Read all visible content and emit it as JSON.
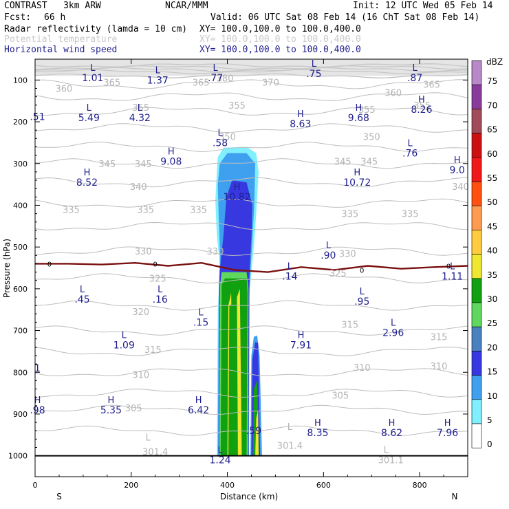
{
  "header": {
    "model": "CONTRAST   3km ARW",
    "org": "NCAR/MMM",
    "init": "Init: 12 UTC Wed 05 Feb 14",
    "fcst_label": "Fcst:",
    "fcst_value": "66 h",
    "valid": "Valid: 06 UTC Sat 08 Feb 14 (16 ChT Sat 08 Feb 14)",
    "fields": [
      {
        "name": "Radar reflectivity (lamda = 10 cm)",
        "xy": "XY= 100.0,100.0 to 100.0,400.0",
        "color": "#000000"
      },
      {
        "name": "Potential temperature",
        "xy": "XY= 100.0,100.0 to 100.0,400.0",
        "color": "#c8c8c8"
      },
      {
        "name": "Horizontal wind speed",
        "xy": "XY= 100.0,100.0 to 100.0,400.0",
        "color": "#1f1f8f"
      }
    ]
  },
  "chart_data": {
    "type": "contour-cross-section",
    "xlabel": "Distance (km)",
    "ylabel": "Pressure (hPa)",
    "xlim": [
      0,
      900
    ],
    "ylim": [
      1050,
      50
    ],
    "x_ticks": [
      "0",
      "200",
      "400",
      "600",
      "800"
    ],
    "x_tick_values": [
      0,
      200,
      400,
      600,
      800
    ],
    "y_ticks": [
      "100",
      "200",
      "300",
      "400",
      "500",
      "600",
      "700",
      "800",
      "900",
      "1000"
    ],
    "y_tick_values": [
      100,
      200,
      300,
      400,
      500,
      600,
      700,
      800,
      900,
      1000
    ],
    "x_end_labels": {
      "left": "S",
      "right": "N"
    },
    "colorbar": {
      "unit": "dBZ",
      "levels": [
        "75",
        "70",
        "65",
        "60",
        "55",
        "50",
        "45",
        "40",
        "35",
        "30",
        "25",
        "20",
        "15",
        "10",
        "5",
        "0"
      ],
      "colors": [
        "#b888c8",
        "#8a3a9a",
        "#a04a5a",
        "#cc1010",
        "#f01818",
        "#ff5010",
        "#ff9a50",
        "#ffcc40",
        "#f0e830",
        "#10a010",
        "#60d860",
        "#4880c0",
        "#3838e0",
        "#40a0f0",
        "#80f0ff",
        "#ffffff"
      ]
    },
    "theta_contour_labels": [
      {
        "text": "380",
        "x": 395,
        "p": 95
      },
      {
        "text": "370",
        "x": 490,
        "p": 105
      },
      {
        "text": "360",
        "x": 60,
        "p": 120
      },
      {
        "text": "365",
        "x": 160,
        "p": 105
      },
      {
        "text": "365",
        "x": 345,
        "p": 105
      },
      {
        "text": "360",
        "x": 745,
        "p": 130
      },
      {
        "text": "365",
        "x": 825,
        "p": 110
      },
      {
        "text": "355",
        "x": 220,
        "p": 165
      },
      {
        "text": "355",
        "x": 420,
        "p": 160
      },
      {
        "text": "355",
        "x": 690,
        "p": 170
      },
      {
        "text": "355",
        "x": 805,
        "p": 160
      },
      {
        "text": "350",
        "x": 400,
        "p": 235
      },
      {
        "text": "350",
        "x": 700,
        "p": 235
      },
      {
        "text": "345",
        "x": 150,
        "p": 300
      },
      {
        "text": "345",
        "x": 225,
        "p": 300
      },
      {
        "text": "345",
        "x": 640,
        "p": 295
      },
      {
        "text": "345",
        "x": 695,
        "p": 295
      },
      {
        "text": "340",
        "x": 215,
        "p": 355
      },
      {
        "text": "340",
        "x": 885,
        "p": 355
      },
      {
        "text": "335",
        "x": 75,
        "p": 410
      },
      {
        "text": "335",
        "x": 230,
        "p": 410
      },
      {
        "text": "335",
        "x": 340,
        "p": 410
      },
      {
        "text": "335",
        "x": 655,
        "p": 420
      },
      {
        "text": "335",
        "x": 780,
        "p": 420
      },
      {
        "text": "330",
        "x": 225,
        "p": 510
      },
      {
        "text": "330",
        "x": 375,
        "p": 510
      },
      {
        "text": "330",
        "x": 650,
        "p": 515
      },
      {
        "text": "325",
        "x": 255,
        "p": 575
      },
      {
        "text": "325",
        "x": 630,
        "p": 562
      },
      {
        "text": "320",
        "x": 220,
        "p": 655
      },
      {
        "text": "315",
        "x": 245,
        "p": 745
      },
      {
        "text": "315",
        "x": 655,
        "p": 685
      },
      {
        "text": "315",
        "x": 840,
        "p": 715
      },
      {
        "text": "310",
        "x": 220,
        "p": 805
      },
      {
        "text": "310",
        "x": 680,
        "p": 788
      },
      {
        "text": "310",
        "x": 840,
        "p": 785
      },
      {
        "text": "305",
        "x": 205,
        "p": 885
      },
      {
        "text": "305",
        "x": 635,
        "p": 855
      },
      {
        "text": "301.4",
        "x": 250,
        "p": 990
      },
      {
        "text": "301.4",
        "x": 530,
        "p": 975
      },
      {
        "text": "301.1",
        "x": 740,
        "p": 1010
      }
    ],
    "theta_extrema_L": [
      {
        "text": "L",
        "x": 235,
        "p": 955
      },
      {
        "text": "L",
        "x": 530,
        "p": 930
      },
      {
        "text": "L",
        "x": 730,
        "p": 985
      }
    ],
    "freezing_level": {
      "label": "0",
      "p_levels": [
        540,
        540,
        542,
        538,
        545,
        538,
        555,
        560,
        548,
        555,
        545,
        552,
        548,
        545
      ]
    },
    "wind_extrema": [
      {
        "type": "L",
        "value": "1.01",
        "x": 120,
        "p": 85
      },
      {
        "type": "L",
        "value": "1.37",
        "x": 255,
        "p": 90
      },
      {
        "type": "L",
        "value": ".77",
        "x": 375,
        "p": 85
      },
      {
        "type": "L",
        "value": ".75",
        "x": 580,
        "p": 75
      },
      {
        "type": "L",
        "value": ".87",
        "x": 790,
        "p": 85
      },
      {
        "type": "",
        "value": ".51",
        "x": 5,
        "p": 178
      },
      {
        "type": "L",
        "value": "5.49",
        "x": 112,
        "p": 180
      },
      {
        "type": "L",
        "value": "4.32",
        "x": 218,
        "p": 180
      },
      {
        "type": "L",
        "value": ".58",
        "x": 385,
        "p": 240
      },
      {
        "type": "H",
        "value": "8.63",
        "x": 552,
        "p": 195
      },
      {
        "type": "H",
        "value": "9.68",
        "x": 673,
        "p": 180
      },
      {
        "type": "H",
        "value": "8.26",
        "x": 804,
        "p": 160
      },
      {
        "type": "H",
        "value": "9.08",
        "x": 283,
        "p": 285
      },
      {
        "type": "L",
        "value": ".76",
        "x": 780,
        "p": 265
      },
      {
        "type": "H",
        "value": "9.0",
        "x": 878,
        "p": 305
      },
      {
        "type": "H",
        "value": "8.52",
        "x": 108,
        "p": 335
      },
      {
        "type": "H",
        "value": "10.72",
        "x": 670,
        "p": 335
      },
      {
        "type": "H",
        "value": "10.82",
        "x": 420,
        "p": 370
      },
      {
        "type": "L",
        "value": ".90",
        "x": 610,
        "p": 510
      },
      {
        "type": "L",
        "value": ".14",
        "x": 530,
        "p": 560
      },
      {
        "type": "L",
        "value": "1.11",
        "x": 868,
        "p": 560
      },
      {
        "type": "L",
        "value": ".45",
        "x": 98,
        "p": 615
      },
      {
        "type": "L",
        "value": ".16",
        "x": 260,
        "p": 615
      },
      {
        "type": "L",
        "value": ".95",
        "x": 680,
        "p": 620
      },
      {
        "type": "L",
        "value": ".15",
        "x": 345,
        "p": 670
      },
      {
        "type": "L",
        "value": "2.96",
        "x": 745,
        "p": 695
      },
      {
        "type": "L",
        "value": "1.09",
        "x": 185,
        "p": 725
      },
      {
        "type": "H",
        "value": "7.91",
        "x": 553,
        "p": 725
      },
      {
        "type": "",
        "value": "1",
        "x": 5,
        "p": 780
      },
      {
        "type": "H",
        "value": ".98",
        "x": 5,
        "p": 880
      },
      {
        "type": "H",
        "value": "5.35",
        "x": 158,
        "p": 880
      },
      {
        "type": "H",
        "value": "6.42",
        "x": 340,
        "p": 880
      },
      {
        "type": "",
        "value": ".59",
        "x": 455,
        "p": 930
      },
      {
        "type": "H",
        "value": "8.35",
        "x": 588,
        "p": 935
      },
      {
        "type": "H",
        "value": "8.62",
        "x": 742,
        "p": 935
      },
      {
        "type": "H",
        "value": "7.96",
        "x": 858,
        "p": 935
      },
      {
        "type": "L",
        "value": "1.24",
        "x": 385,
        "p": 1000
      }
    ]
  }
}
